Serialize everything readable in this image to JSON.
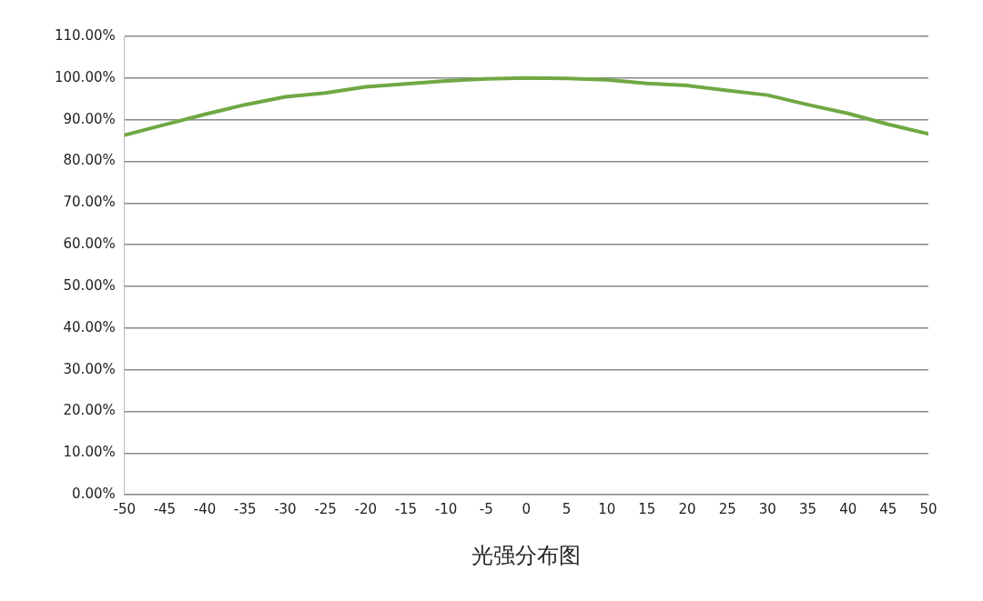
{
  "chart_data": {
    "type": "line",
    "xlabel": "光强分布图",
    "x": [
      -50,
      -45,
      -40,
      -35,
      -30,
      -25,
      -20,
      -15,
      -10,
      -5,
      0,
      5,
      10,
      15,
      20,
      25,
      30,
      35,
      40,
      45,
      50
    ],
    "series": [
      {
        "color": "#70a844",
        "values": [
          86.3,
          88.8,
          91.3,
          93.6,
          95.5,
          96.4,
          97.9,
          98.6,
          99.3,
          99.8,
          100,
          99.9,
          99.6,
          98.7,
          98.2,
          97.0,
          95.9,
          93.6,
          91.5,
          88.9,
          86.6
        ]
      }
    ],
    "xlim": [
      -50,
      50
    ],
    "xticks": [
      -50,
      -45,
      -40,
      -35,
      -30,
      -25,
      -20,
      -15,
      -10,
      -5,
      0,
      5,
      10,
      15,
      20,
      25,
      30,
      35,
      40,
      45,
      50
    ],
    "ylim": [
      0,
      110
    ],
    "yticks": [
      {
        "value": 0,
        "label": "0.00%"
      },
      {
        "value": 10,
        "label": "10.00%"
      },
      {
        "value": 20,
        "label": "20.00%"
      },
      {
        "value": 30,
        "label": "30.00%"
      },
      {
        "value": 40,
        "label": "40.00%"
      },
      {
        "value": 50,
        "label": "50.00%"
      },
      {
        "value": 60,
        "label": "60.00%"
      },
      {
        "value": 70,
        "label": "70.00%"
      },
      {
        "value": 80,
        "label": "80.00%"
      },
      {
        "value": 90,
        "label": "90.00%"
      },
      {
        "value": 100,
        "label": "100.00%"
      },
      {
        "value": 110,
        "label": "110.00%"
      }
    ],
    "grid": "y",
    "legend": false,
    "marker": "none",
    "line_style": "solid"
  }
}
